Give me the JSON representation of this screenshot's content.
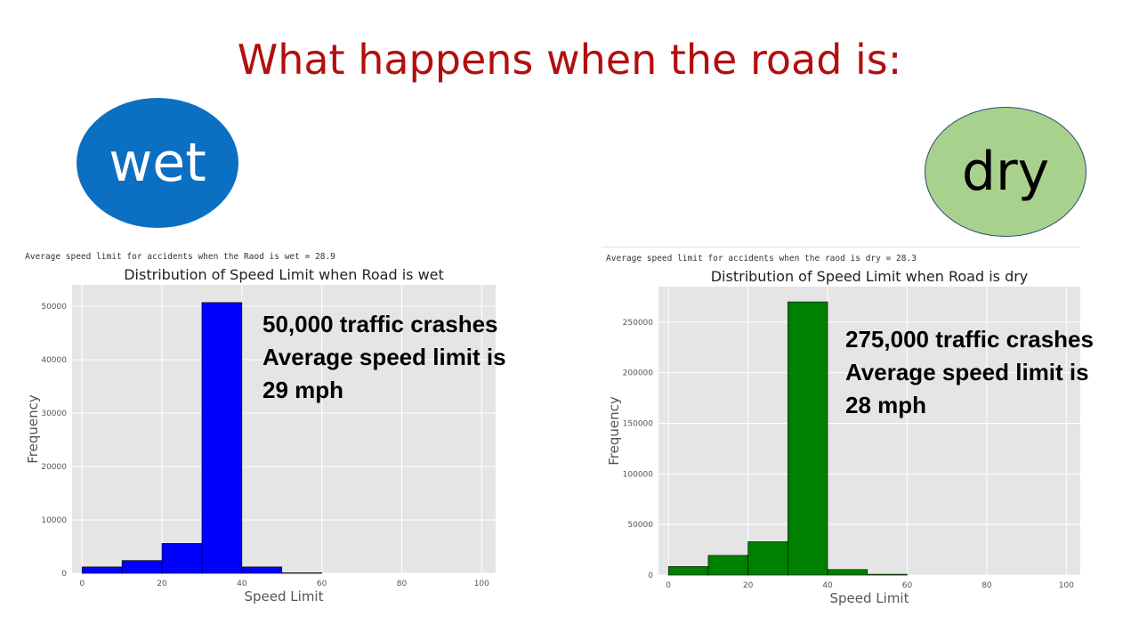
{
  "slide": {
    "title": "What happens when the road is:",
    "badges": [
      {
        "label": "wet",
        "color": "#0b6fc2"
      },
      {
        "label": "dry",
        "color": "#a9d18e"
      }
    ]
  },
  "panels": [
    {
      "caption": "Average speed limit for accidents when the Raod is wet = 28.9",
      "annotation": [
        "50,000 traffic crashes",
        "Average speed limit is",
        "29 mph"
      ]
    },
    {
      "caption": "Average speed limit for accidents when the raod is dry = 28.3",
      "annotation": [
        "275,000 traffic crashes",
        "Average speed limit is",
        "28 mph"
      ]
    }
  ],
  "chart_data": [
    {
      "type": "bar",
      "title": "Distribution of Speed Limit when Road is wet",
      "xlabel": "Speed Limit",
      "ylabel": "Frequency",
      "bin_edges": [
        0,
        10,
        20,
        30,
        40,
        50,
        60,
        70,
        80,
        90,
        100
      ],
      "values": [
        1200,
        2400,
        5600,
        50700,
        1200,
        100,
        0,
        0,
        0,
        0
      ],
      "xticks": [
        0,
        20,
        40,
        60,
        80,
        100
      ],
      "yticks": [
        0,
        10000,
        20000,
        30000,
        40000,
        50000
      ],
      "xlim": [
        -2.5,
        103.5
      ],
      "ylim": [
        0,
        54000
      ],
      "bar_color": "#0000ff",
      "grid": true
    },
    {
      "type": "bar",
      "title": "Distribution of Speed Limit when Road is dry",
      "xlabel": "Speed Limit",
      "ylabel": "Frequency",
      "bin_edges": [
        0,
        10,
        20,
        30,
        40,
        50,
        60,
        70,
        80,
        90,
        100
      ],
      "values": [
        8500,
        19500,
        33000,
        270000,
        5500,
        800,
        0,
        0,
        0,
        0
      ],
      "xticks": [
        0,
        20,
        40,
        60,
        80,
        100
      ],
      "yticks": [
        0,
        50000,
        100000,
        150000,
        200000,
        250000
      ],
      "xlim": [
        -2.5,
        103.5
      ],
      "ylim": [
        0,
        285000
      ],
      "bar_color": "#008000",
      "grid": true
    }
  ]
}
